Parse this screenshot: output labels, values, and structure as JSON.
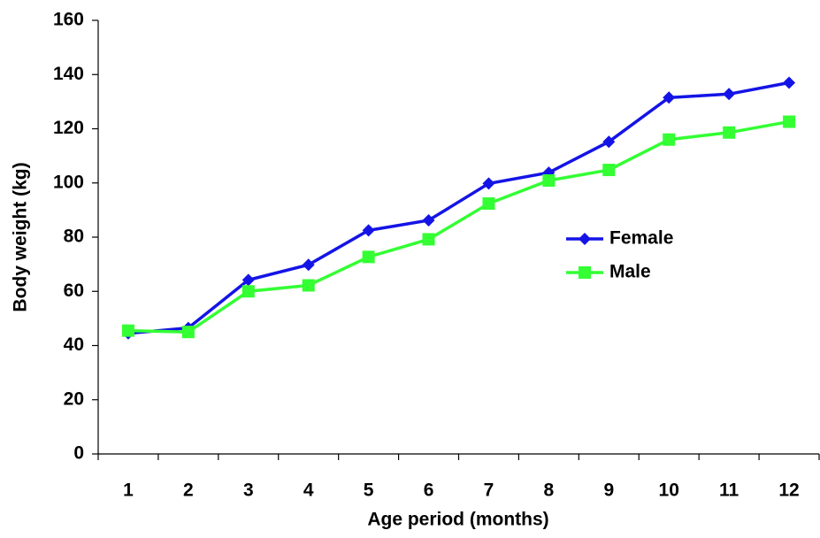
{
  "chart_data": {
    "type": "line",
    "x_label": "Age period (months)",
    "y_label": "Body weight (kg)",
    "categories": [
      "1",
      "2",
      "3",
      "4",
      "5",
      "6",
      "7",
      "8",
      "9",
      "10",
      "11",
      "12"
    ],
    "series": [
      {
        "name": "Female",
        "color": "#1414e6",
        "marker": "diamond",
        "values": [
          44.5,
          46.5,
          64.2,
          69.8,
          82.5,
          86.2,
          99.8,
          103.8,
          115.2,
          131.5,
          132.8,
          137
        ]
      },
      {
        "name": "Male",
        "color": "#33ff33",
        "marker": "square",
        "values": [
          45.5,
          45,
          60,
          62.2,
          72.7,
          79.2,
          92.4,
          100.9,
          104.8,
          116,
          118.6,
          122.6
        ]
      }
    ],
    "ylim": [
      0,
      160
    ],
    "yticks": [
      0,
      20,
      40,
      60,
      80,
      100,
      120,
      140,
      160
    ],
    "grid": false,
    "legend": "right"
  }
}
